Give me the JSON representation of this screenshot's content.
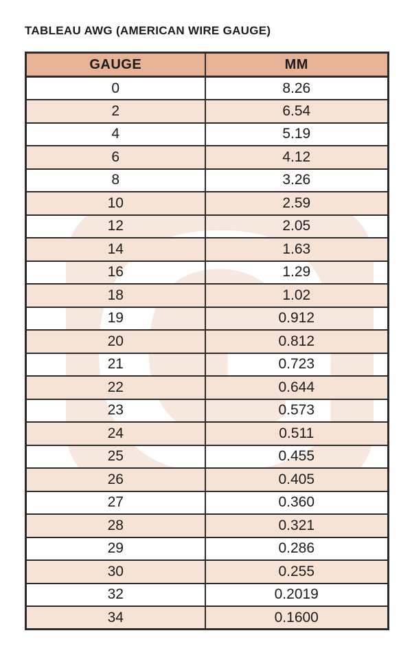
{
  "title": "TABLEAU AWG (AMERICAN WIRE GAUGE)",
  "watermark": {
    "letter": "G"
  },
  "table": {
    "columns": [
      "GAUGE",
      "MM"
    ],
    "rows": [
      [
        "0",
        "8.26"
      ],
      [
        "2",
        "6.54"
      ],
      [
        "4",
        "5.19"
      ],
      [
        "6",
        "4.12"
      ],
      [
        "8",
        "3.26"
      ],
      [
        "10",
        "2.59"
      ],
      [
        "12",
        "2.05"
      ],
      [
        "14",
        "1.63"
      ],
      [
        "16",
        "1.29"
      ],
      [
        "18",
        "1.02"
      ],
      [
        "19",
        "0.912"
      ],
      [
        "20",
        "0.812"
      ],
      [
        "21",
        "0.723"
      ],
      [
        "22",
        "0.644"
      ],
      [
        "23",
        "0.573"
      ],
      [
        "24",
        "0.511"
      ],
      [
        "25",
        "0.455"
      ],
      [
        "26",
        "0.405"
      ],
      [
        "27",
        "0.360"
      ],
      [
        "28",
        "0.321"
      ],
      [
        "29",
        "0.286"
      ],
      [
        "30",
        "0.255"
      ],
      [
        "32",
        "0.2019"
      ],
      [
        "34",
        "0.1600"
      ]
    ]
  },
  "colors": {
    "header_bg": "#e7b296",
    "alt_row_bg": "#f7e3d6",
    "border_color": "#2b2b2b",
    "watermark_bg": "#f7e8df",
    "text_color": "#1b1b1b",
    "page_bg": "#ffffff"
  }
}
